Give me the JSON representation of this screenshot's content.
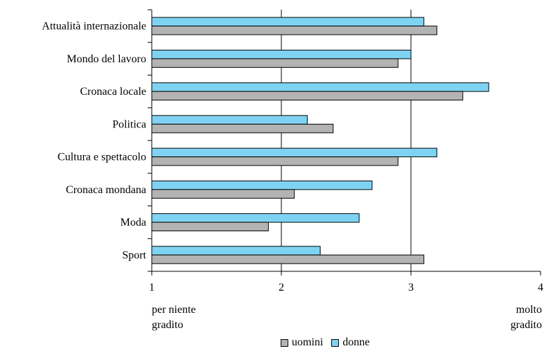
{
  "chart_data": {
    "type": "bar",
    "orientation": "horizontal",
    "categories": [
      "Attualità internazionale",
      "Mondo del lavoro",
      "Cronaca locale",
      "Politica",
      "Cultura e spettacolo",
      "Cronaca mondana",
      "Moda",
      "Sport"
    ],
    "series": [
      {
        "name": "donne",
        "color": "#7fd3f2",
        "values": [
          3.1,
          3.0,
          3.6,
          2.2,
          3.2,
          2.7,
          2.6,
          2.3
        ]
      },
      {
        "name": "uomini",
        "color": "#b3b3b3",
        "values": [
          3.2,
          2.9,
          3.4,
          2.4,
          2.9,
          2.1,
          1.9,
          3.1
        ]
      }
    ],
    "xlim": [
      1,
      4
    ],
    "xticks": [
      "1",
      "2",
      "3",
      "4"
    ],
    "grid": true,
    "min_label": [
      "per niente",
      "gradito"
    ],
    "max_label": [
      "molto",
      "gradito"
    ],
    "legend": {
      "placement": "bottom",
      "order": [
        "uomini",
        "donne"
      ]
    }
  }
}
